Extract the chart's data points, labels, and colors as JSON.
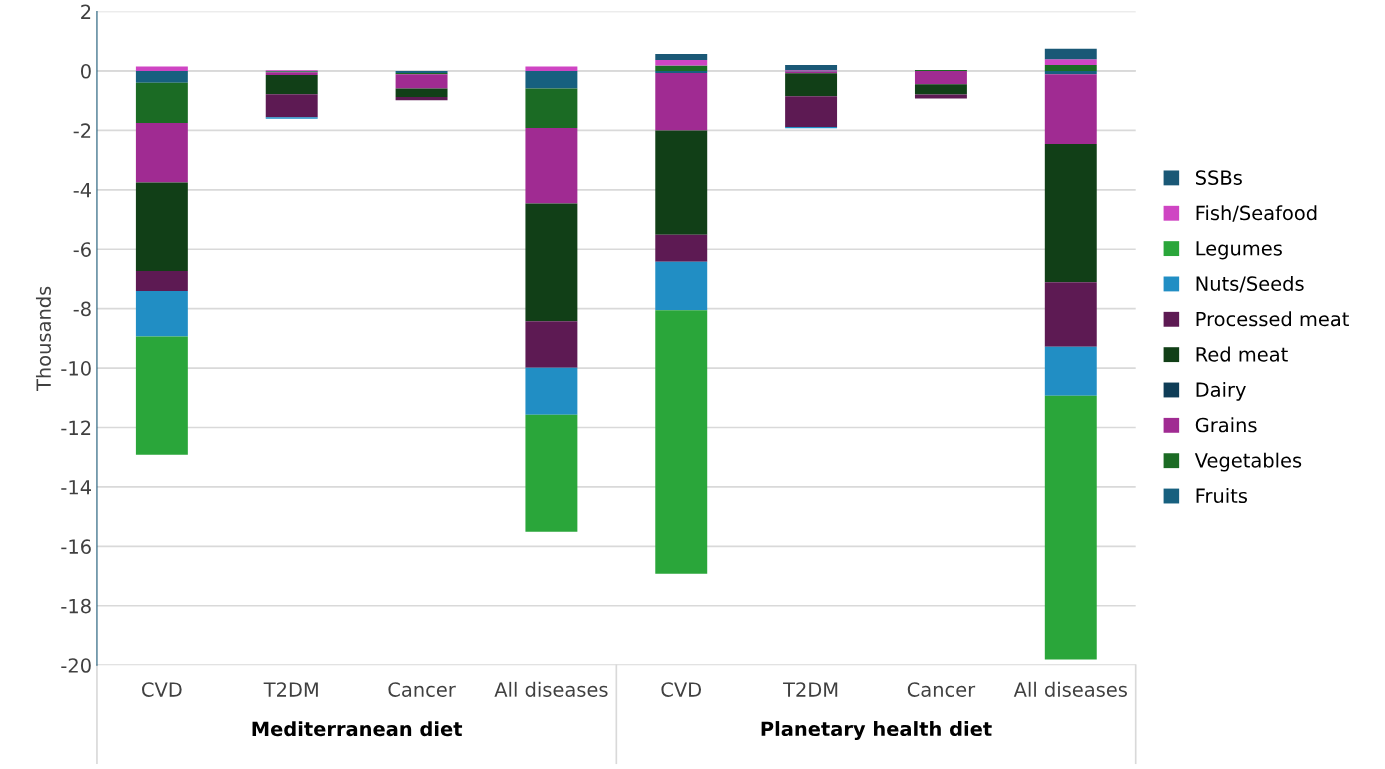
{
  "chart_data": {
    "type": "bar",
    "stacked": true,
    "ylabel": "Thousands",
    "categories": [
      "CVD",
      "T2DM",
      "Cancer",
      "All diseases",
      "CVD",
      "T2DM",
      "Cancer",
      "All diseases"
    ],
    "annotations": [
      "Mediterranean diet",
      "Planetary health diet"
    ],
    "series": [
      {
        "name": "Fruits",
        "color": "#17607f",
        "values": [
          -0.4,
          -0.02,
          -0.07,
          -0.59,
          -0.07,
          -0.02,
          0,
          -0.11
        ]
      },
      {
        "name": "Vegetables",
        "color": "#1b6b24",
        "values": [
          -1.35,
          -0.02,
          -0.04,
          -1.33,
          0.18,
          0,
          0.03,
          0.2
        ]
      },
      {
        "name": "Grains",
        "color": "#a02b92",
        "values": [
          -2.0,
          -0.1,
          -0.48,
          -2.54,
          -1.93,
          -0.06,
          -0.45,
          -2.35
        ]
      },
      {
        "name": "Dairy",
        "color": "#0f3d57",
        "values": [
          0,
          0,
          0,
          0,
          0,
          0,
          0,
          0
        ]
      },
      {
        "name": "Red meat",
        "color": "#113f17",
        "values": [
          -2.98,
          -0.64,
          -0.29,
          -3.96,
          -3.51,
          -0.77,
          -0.34,
          -4.65
        ]
      },
      {
        "name": "Processed meat",
        "color": "#5d1a53",
        "values": [
          -0.68,
          -0.78,
          -0.11,
          -1.57,
          -0.91,
          -1.04,
          -0.14,
          -2.17
        ]
      },
      {
        "name": "Nuts/Seeds",
        "color": "#218ec4",
        "values": [
          -1.53,
          -0.05,
          0,
          -1.58,
          -1.63,
          -0.04,
          0,
          -1.65
        ]
      },
      {
        "name": "Legumes",
        "color": "#2aa63a",
        "values": [
          -3.98,
          0,
          0,
          -3.94,
          -8.87,
          0,
          0,
          -8.88
        ]
      },
      {
        "name": "Fish/Seafood",
        "color": "#cf45c3",
        "values": [
          0.15,
          0.02,
          0,
          0.15,
          0.19,
          0.02,
          0,
          0.19
        ]
      },
      {
        "name": "SSBs",
        "color": "#1a5876",
        "values": [
          0,
          0,
          0,
          0,
          0.2,
          0.18,
          0,
          0.36
        ]
      }
    ],
    "ylim": [
      -20,
      2
    ],
    "yticks": [
      -20,
      -18,
      -16,
      -14,
      -12,
      -10,
      -8,
      -6,
      -4,
      -2,
      0,
      2
    ],
    "grid": "y",
    "legend": "right"
  }
}
